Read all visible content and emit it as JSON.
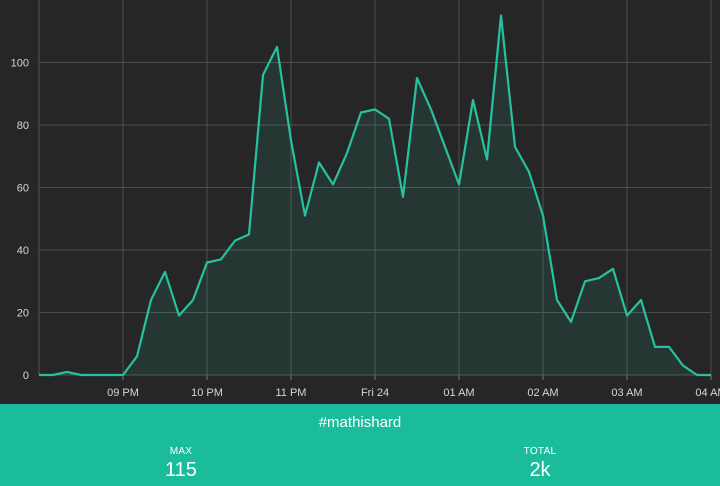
{
  "chart_data": {
    "type": "area",
    "title": "",
    "xlabel": "",
    "ylabel": "",
    "ylim": [
      0,
      120
    ],
    "yticks": [
      0,
      20,
      40,
      60,
      80,
      100
    ],
    "xlim": [
      "2000-01-23T20:00",
      "2000-01-24T04:00"
    ],
    "xticks": [
      {
        "t": "2000-01-23T21:00",
        "label": "09 PM"
      },
      {
        "t": "2000-01-23T22:00",
        "label": "10 PM"
      },
      {
        "t": "2000-01-23T23:00",
        "label": "11 PM"
      },
      {
        "t": "2000-01-24T00:00",
        "label": "Fri 24"
      },
      {
        "t": "2000-01-24T01:00",
        "label": "01 AM"
      },
      {
        "t": "2000-01-24T02:00",
        "label": "02 AM"
      },
      {
        "t": "2000-01-24T03:00",
        "label": "03 AM"
      },
      {
        "t": "2000-01-24T04:00",
        "label": "04 AM"
      }
    ],
    "grid": true,
    "line_color": "#26c29f",
    "series": [
      {
        "x": [
          "2000-01-23T20:00",
          "2000-01-23T20:10",
          "2000-01-23T20:20",
          "2000-01-23T20:30",
          "2000-01-23T20:40",
          "2000-01-23T20:50",
          "2000-01-23T21:00",
          "2000-01-23T21:10",
          "2000-01-23T21:20",
          "2000-01-23T21:30",
          "2000-01-23T21:40",
          "2000-01-23T21:50",
          "2000-01-23T22:00",
          "2000-01-23T22:10",
          "2000-01-23T22:20",
          "2000-01-23T22:30",
          "2000-01-23T22:40",
          "2000-01-23T22:50",
          "2000-01-23T23:00",
          "2000-01-23T23:10",
          "2000-01-23T23:20",
          "2000-01-23T23:30",
          "2000-01-23T23:40",
          "2000-01-23T23:50",
          "2000-01-24T00:00",
          "2000-01-24T00:10",
          "2000-01-24T00:20",
          "2000-01-24T00:30",
          "2000-01-24T00:40",
          "2000-01-24T00:50",
          "2000-01-24T01:00",
          "2000-01-24T01:10",
          "2000-01-24T01:20",
          "2000-01-24T01:30",
          "2000-01-24T01:40",
          "2000-01-24T01:50",
          "2000-01-24T02:00",
          "2000-01-24T02:10",
          "2000-01-24T02:20",
          "2000-01-24T02:30",
          "2000-01-24T02:40",
          "2000-01-24T02:50",
          "2000-01-24T03:00",
          "2000-01-24T03:10",
          "2000-01-24T03:20",
          "2000-01-24T03:30",
          "2000-01-24T03:40",
          "2000-01-24T03:50",
          "2000-01-24T04:00"
        ],
        "values": [
          0,
          0,
          1,
          0,
          0,
          0,
          0,
          6,
          24,
          33,
          19,
          24,
          36,
          37,
          43,
          45,
          96,
          105,
          75,
          51,
          68,
          61,
          71,
          84,
          85,
          82,
          57,
          95,
          85,
          73,
          61,
          88,
          69,
          115,
          73,
          65,
          51,
          24,
          17,
          30,
          31,
          34,
          19,
          24,
          9,
          9,
          3,
          0,
          0
        ]
      }
    ]
  },
  "footer": {
    "hashtag": "#mathishard",
    "max_label": "MAX",
    "max_value": "115",
    "total_label": "TOTAL",
    "total_value": "2k",
    "background": "#1bbc9b"
  }
}
